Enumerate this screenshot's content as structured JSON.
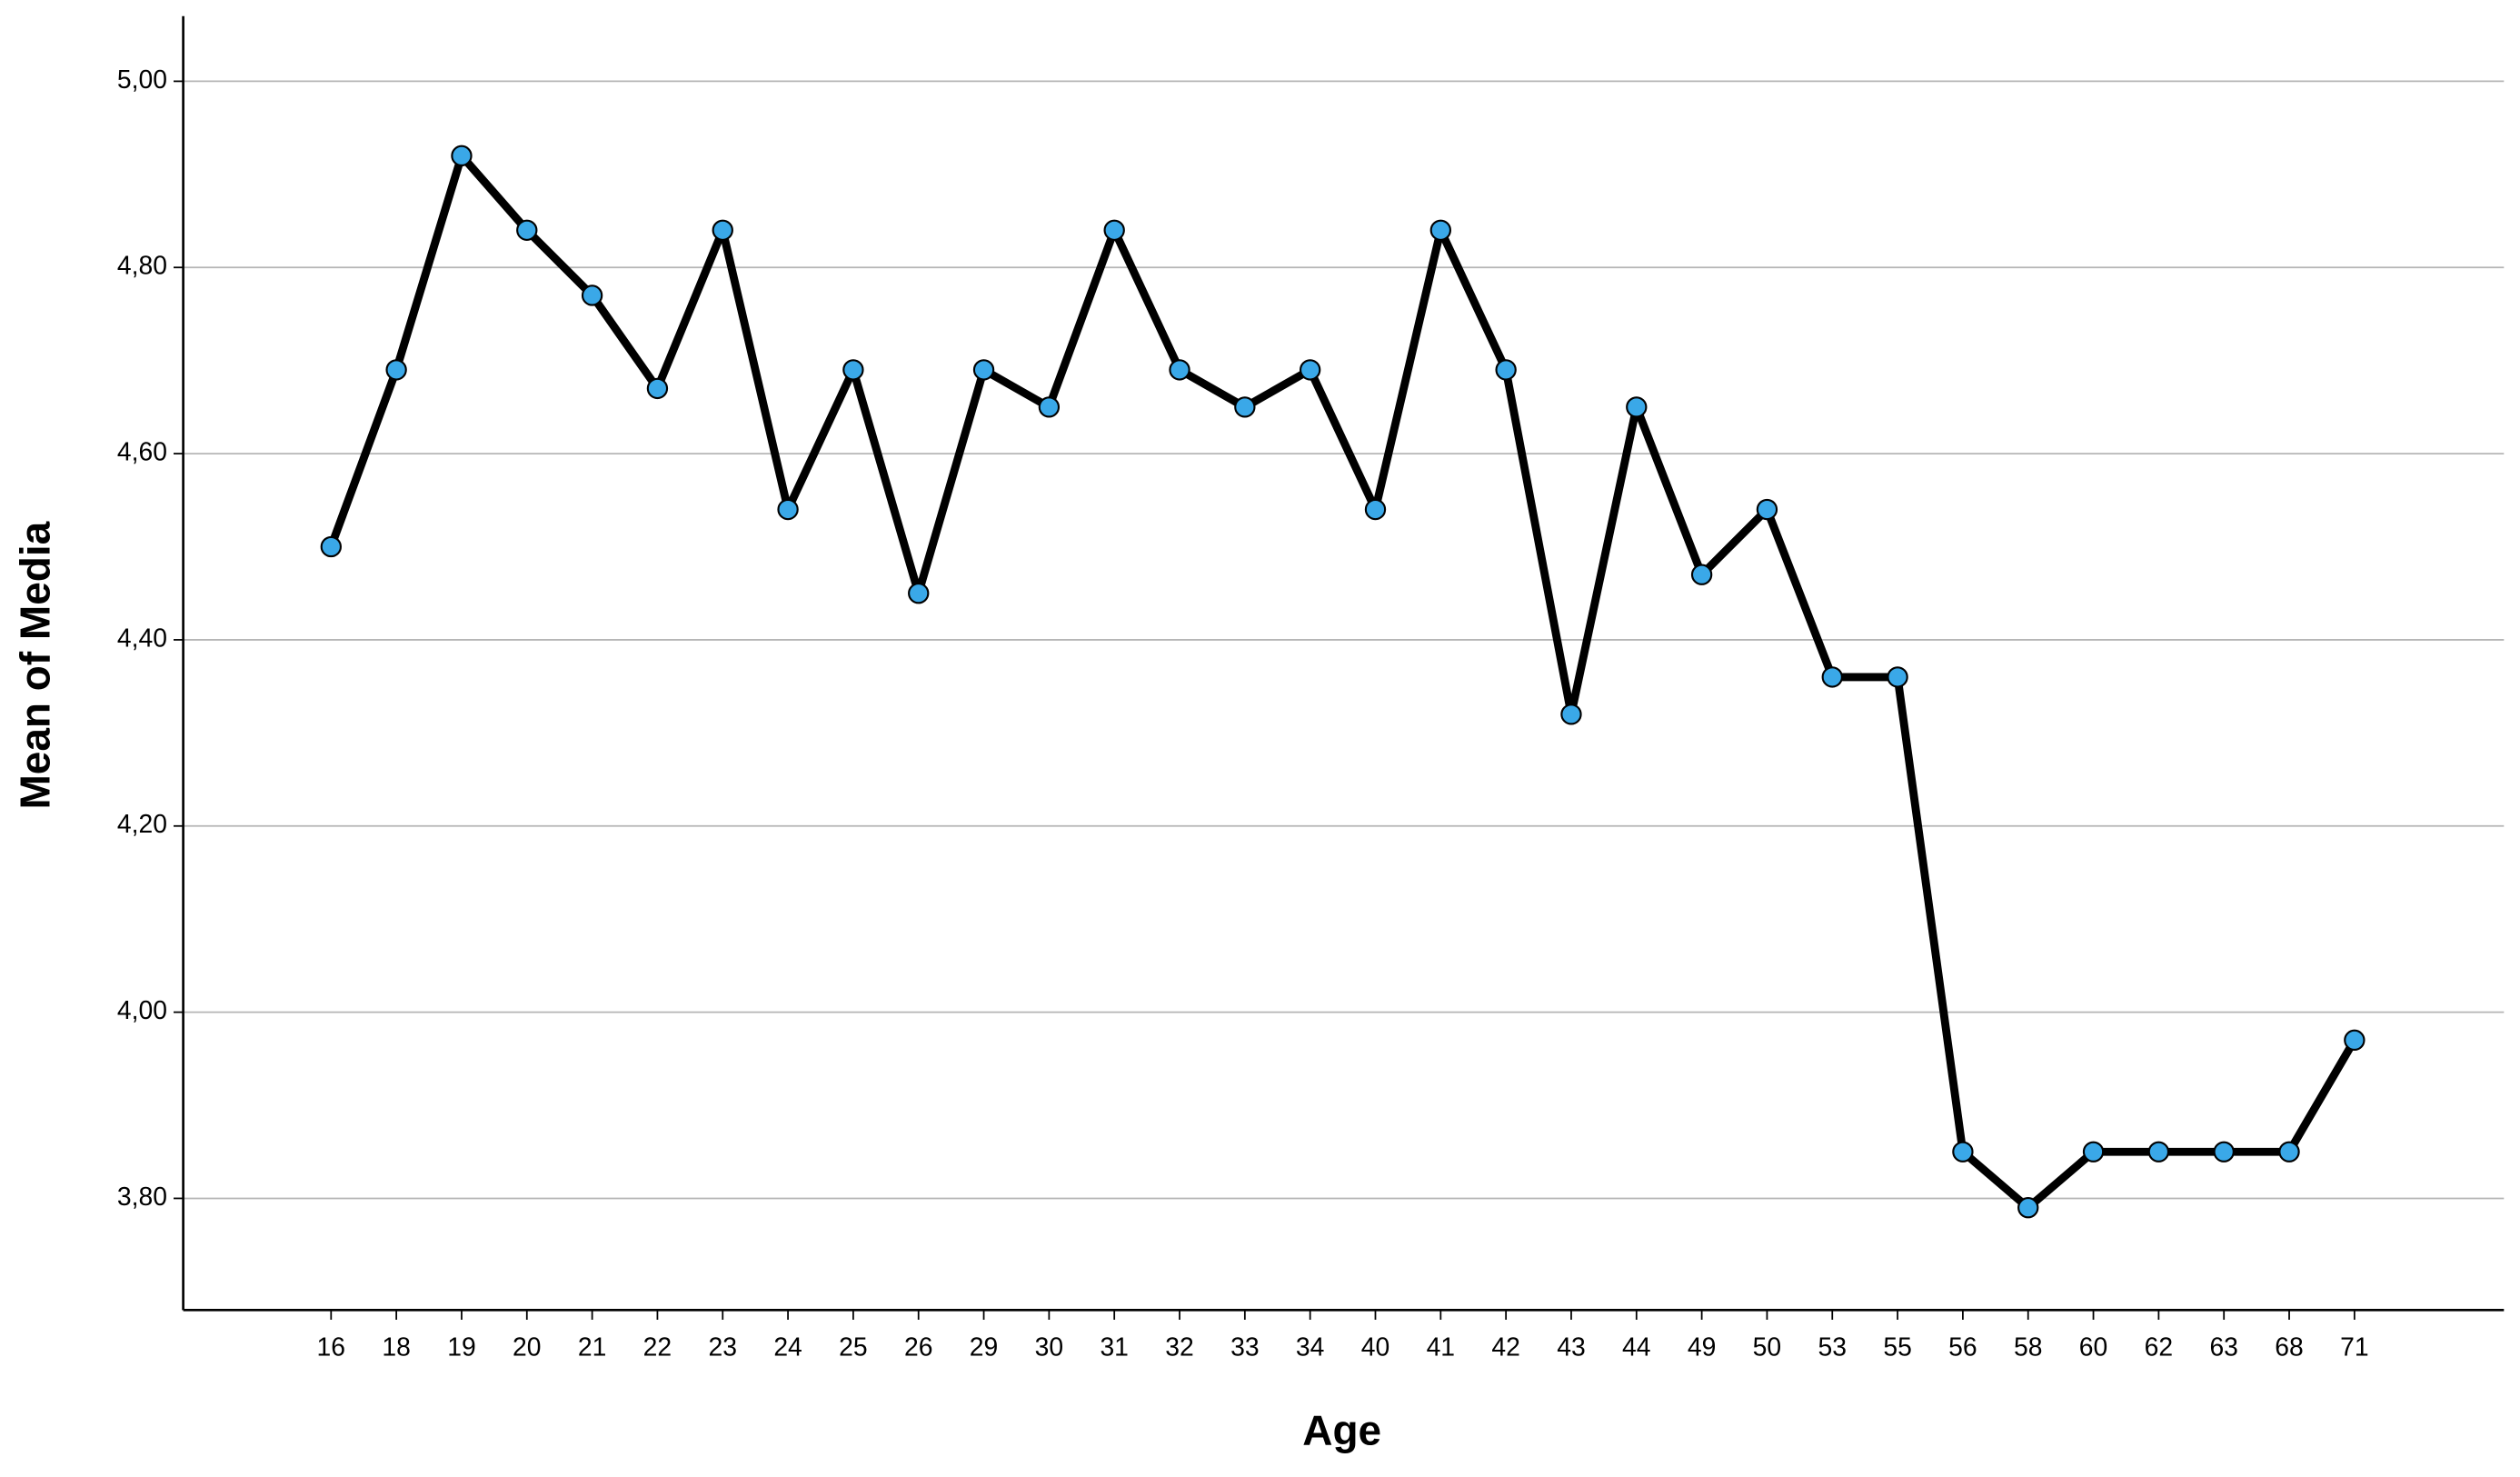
{
  "chart_data": {
    "type": "line",
    "x_label": "Age",
    "y_label": "Mean of Media",
    "categories": [
      "16",
      "18",
      "19",
      "20",
      "21",
      "22",
      "23",
      "24",
      "25",
      "26",
      "29",
      "30",
      "31",
      "32",
      "33",
      "34",
      "40",
      "41",
      "42",
      "43",
      "44",
      "49",
      "50",
      "53",
      "55",
      "56",
      "58",
      "60",
      "62",
      "63",
      "68",
      "71"
    ],
    "series": [
      {
        "color": "#000000",
        "marker_color": "#3aa8e8",
        "values": [
          4.5,
          4.69,
          4.92,
          4.84,
          4.77,
          4.67,
          4.84,
          4.54,
          4.69,
          4.45,
          4.69,
          4.65,
          4.84,
          4.69,
          4.65,
          4.69,
          4.54,
          4.84,
          4.69,
          4.32,
          4.65,
          4.47,
          4.54,
          4.36,
          4.36,
          3.85,
          3.79,
          3.85,
          3.85,
          3.85,
          3.85,
          3.97
        ]
      }
    ],
    "ylim": [
      3.68,
      5.07
    ],
    "yticks": [
      {
        "value": 3.8,
        "label": "3,80"
      },
      {
        "value": 4.0,
        "label": "4,00"
      },
      {
        "value": 4.2,
        "label": "4,20"
      },
      {
        "value": 4.4,
        "label": "4,40"
      },
      {
        "value": 4.6,
        "label": "4,60"
      },
      {
        "value": 4.8,
        "label": "4,80"
      },
      {
        "value": 5.0,
        "label": "5,00"
      }
    ],
    "grid": true
  }
}
